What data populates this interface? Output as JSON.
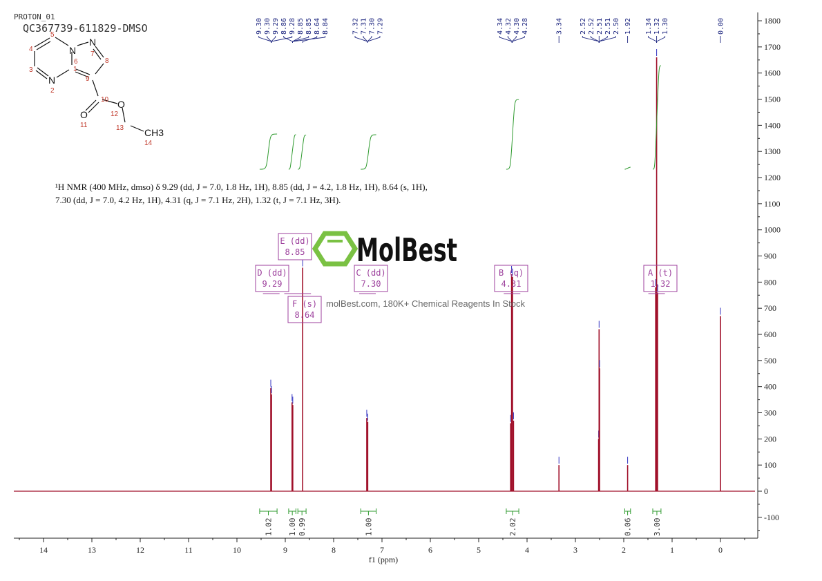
{
  "header": {
    "experiment": "PROTON_01",
    "sample": "QC367739-611829-DMSO"
  },
  "structure": {
    "atoms": [
      "N",
      "N",
      "N",
      "O",
      "O",
      "CH3"
    ],
    "numbers": [
      "1",
      "2",
      "3",
      "4",
      "5",
      "6",
      "7",
      "8",
      "9",
      "10",
      "11",
      "12",
      "13",
      "14"
    ]
  },
  "description": {
    "line1": "¹H NMR (400 MHz, dmso) δ 9.29 (dd, J = 7.0, 1.8 Hz, 1H), 8.85 (dd, J = 4.2, 1.8 Hz, 1H), 8.64 (s, 1H),",
    "line2": "7.30 (dd, J = 7.0, 4.2 Hz, 1H), 4.31 (q, J = 7.1 Hz, 2H), 1.32 (t, J = 7.1 Hz, 3H)."
  },
  "watermark": {
    "brand": "MolBest",
    "tagline": "molBest.com, 180K+ Chemical Reagents In Stock"
  },
  "colors": {
    "spectrum": "#a0102a",
    "integral": "#2e9a2e",
    "peaklabel": "#1a237e",
    "multiplet": "#9c3f9c",
    "logo": "#7ac143"
  },
  "chart_data": {
    "type": "line",
    "xlabel": "f1 (ppm)",
    "xlim": [
      14.6,
      -0.7
    ],
    "ylim": [
      -170,
      1830
    ],
    "x_ticks": [
      "14",
      "13",
      "12",
      "11",
      "10",
      "9",
      "8",
      "7",
      "6",
      "5",
      "4",
      "3",
      "2",
      "1",
      "0"
    ],
    "y_ticks": [
      "-100",
      "0",
      "100",
      "200",
      "300",
      "400",
      "500",
      "600",
      "700",
      "800",
      "900",
      "1000",
      "1100",
      "1200",
      "1300",
      "1400",
      "1500",
      "1600",
      "1700",
      "1800"
    ],
    "peaks": [
      [
        9.3,
        395
      ],
      [
        9.285,
        370
      ],
      [
        8.86,
        340
      ],
      [
        8.845,
        330
      ],
      [
        8.64,
        855
      ],
      [
        7.315,
        280
      ],
      [
        7.295,
        265
      ],
      [
        4.34,
        260
      ],
      [
        4.32,
        830
      ],
      [
        4.3,
        820
      ],
      [
        4.28,
        270
      ],
      [
        3.34,
        100
      ],
      [
        2.52,
        200
      ],
      [
        2.51,
        620
      ],
      [
        2.5,
        470
      ],
      [
        1.92,
        100
      ],
      [
        1.34,
        780
      ],
      [
        1.32,
        1660
      ],
      [
        1.3,
        760
      ],
      [
        0.0,
        670
      ]
    ],
    "peak_label_groups": [
      {
        "center": 9.29,
        "labels": [
          "9.30",
          "9.30",
          "9.29",
          "9.28"
        ]
      },
      {
        "center": 8.85,
        "labels": [
          "8.86",
          "8.85",
          "8.85",
          "8.84"
        ]
      },
      {
        "center": 8.64,
        "labels": [
          "8.64"
        ]
      },
      {
        "center": 7.3,
        "labels": [
          "7.32",
          "7.31",
          "7.30",
          "7.29"
        ]
      },
      {
        "center": 4.31,
        "labels": [
          "4.34",
          "4.32",
          "4.30",
          "4.28"
        ]
      },
      {
        "center": 3.34,
        "labels": [
          "3.34"
        ]
      },
      {
        "center": 2.51,
        "labels": [
          "2.52",
          "2.52",
          "2.51",
          "2.51",
          "2.50"
        ]
      },
      {
        "center": 1.92,
        "labels": [
          "1.92"
        ]
      },
      {
        "center": 1.32,
        "labels": [
          "1.34",
          "1.32",
          "1.30"
        ]
      },
      {
        "center": 0.0,
        "labels": [
          "0.00"
        ]
      }
    ],
    "multiplets": [
      {
        "name": "D",
        "type": "dd",
        "shift": "9.29",
        "center": 9.29
      },
      {
        "name": "E",
        "type": "dd",
        "shift": "8.85",
        "center": 8.85
      },
      {
        "name": "F",
        "type": "s",
        "shift": "8.64",
        "center": 8.64
      },
      {
        "name": "C",
        "type": "dd",
        "shift": "7.30",
        "center": 7.3
      },
      {
        "name": "B",
        "type": "q",
        "shift": "4.31",
        "center": 4.31
      },
      {
        "name": "A",
        "type": "t",
        "shift": "1.32",
        "center": 1.32
      }
    ],
    "integrals": [
      {
        "from": 9.53,
        "to": 9.17,
        "value": "1.02"
      },
      {
        "from": 8.93,
        "to": 8.78,
        "value": "1.00"
      },
      {
        "from": 8.74,
        "to": 8.57,
        "value": "0.99"
      },
      {
        "from": 7.44,
        "to": 7.12,
        "value": "1.00"
      },
      {
        "from": 4.43,
        "to": 4.17,
        "value": "2.02"
      },
      {
        "from": 1.98,
        "to": 1.86,
        "value": "0.06"
      },
      {
        "from": 1.4,
        "to": 1.23,
        "value": "3.00"
      }
    ]
  }
}
